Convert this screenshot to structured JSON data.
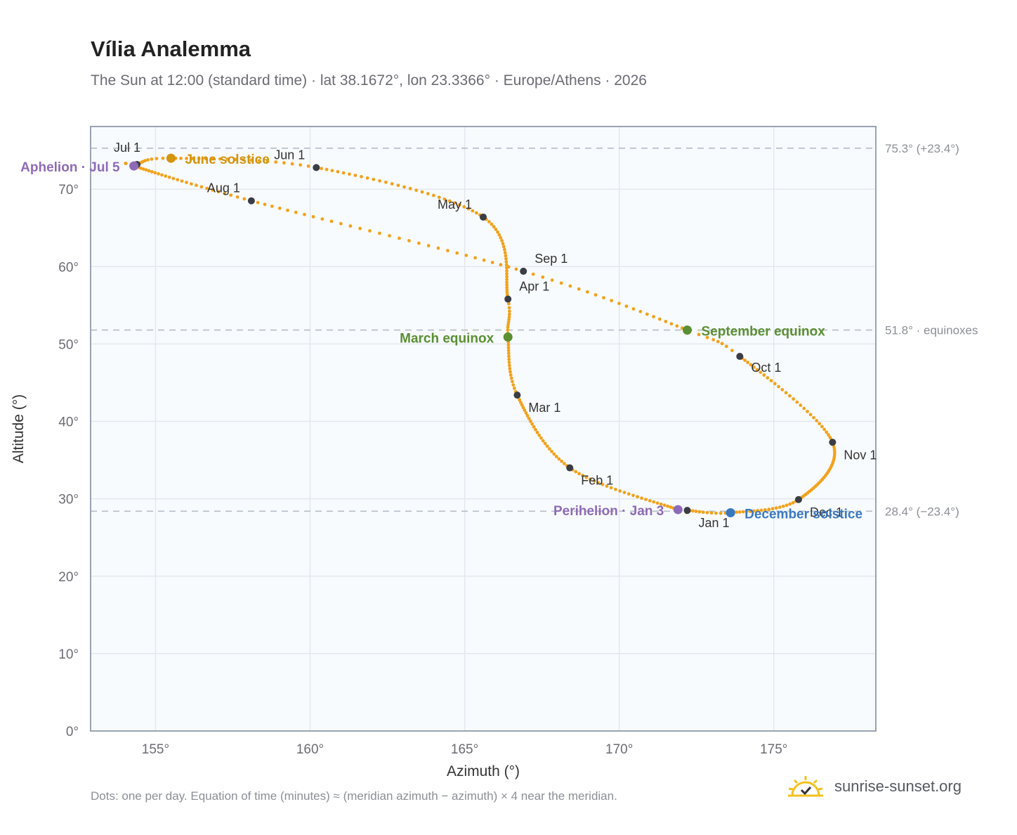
{
  "title": "Vília Analemma",
  "subtitle": "The Sun at 12:00 (standard time) · lat 38.1672°, lon 23.3366° · Europe/Athens · 2026",
  "footnote": "Dots: one per day. Equation of time (minutes) ≈ (meridian azimuth − azimuth) × 4 near the meridian.",
  "brand": {
    "text": "sunrise-sunset.org",
    "icon": "sun-check-icon"
  },
  "colors": {
    "curve": "#f2a21d",
    "month_dot": "#3a3d44",
    "solstice_june": "#d4940e",
    "equinox": "#5a8f32",
    "solstice_december": "#3a78c0",
    "apsis": "#8e6bb8",
    "plot_bg": "#f8fbfe",
    "grid": "#e3e8ee",
    "border": "#9aa3b2",
    "refline": "#b5bcc6"
  },
  "chart_data": {
    "type": "scatter",
    "xlabel": "Azimuth (°)",
    "ylabel": "Altitude (°)",
    "xlim": [
      152.9,
      178.3
    ],
    "ylim": [
      0,
      78.1
    ],
    "grid": true,
    "x_ticks": [
      155,
      160,
      165,
      170,
      175
    ],
    "x_tick_labels": [
      "155°",
      "160°",
      "165°",
      "170°",
      "175°"
    ],
    "y_ticks": [
      0,
      10,
      20,
      30,
      40,
      50,
      60,
      70
    ],
    "y_tick_labels": [
      "0°",
      "10°",
      "20°",
      "30°",
      "40°",
      "50°",
      "60°",
      "70°"
    ],
    "reference_lines": [
      {
        "y": 75.3,
        "label": "75.3° (+23.4°)"
      },
      {
        "y": 51.8,
        "label": "51.8° · equinoxes"
      },
      {
        "y": 28.4,
        "label": "28.4° (−23.4°)"
      }
    ],
    "month_points": [
      {
        "label": "Jan 1",
        "az": 172.2,
        "alt": 28.5
      },
      {
        "label": "Feb 1",
        "az": 168.4,
        "alt": 34.0
      },
      {
        "label": "Mar 1",
        "az": 166.7,
        "alt": 43.4
      },
      {
        "label": "Apr 1",
        "az": 166.4,
        "alt": 55.8
      },
      {
        "label": "May 1",
        "az": 165.6,
        "alt": 66.4
      },
      {
        "label": "Jun 1",
        "az": 160.2,
        "alt": 72.8
      },
      {
        "label": "Jul 1",
        "az": 154.4,
        "alt": 73.2
      },
      {
        "label": "Aug 1",
        "az": 158.1,
        "alt": 68.5
      },
      {
        "label": "Sep 1",
        "az": 166.9,
        "alt": 59.4
      },
      {
        "label": "Oct 1",
        "az": 173.9,
        "alt": 48.4
      },
      {
        "label": "Nov 1",
        "az": 176.9,
        "alt": 37.3
      },
      {
        "label": "Dec 1",
        "az": 175.8,
        "alt": 29.9
      }
    ],
    "events": [
      {
        "label": "June solstice",
        "az": 155.5,
        "alt": 74.0,
        "color": "solstice_june"
      },
      {
        "label": "March equinox",
        "az": 166.4,
        "alt": 50.9,
        "color": "equinox"
      },
      {
        "label": "September equinox",
        "az": 172.2,
        "alt": 51.8,
        "color": "equinox"
      },
      {
        "label": "December solstice",
        "az": 173.6,
        "alt": 28.2,
        "color": "solstice_december"
      },
      {
        "label": "Aphelion · Jul 5",
        "az": 154.3,
        "alt": 73.0,
        "color": "apsis"
      },
      {
        "label": "Perihelion · Jan 3",
        "az": 171.9,
        "alt": 28.6,
        "color": "apsis"
      }
    ],
    "curve_note": "one dot per day of 2026; path passes through month and event points in date order"
  }
}
